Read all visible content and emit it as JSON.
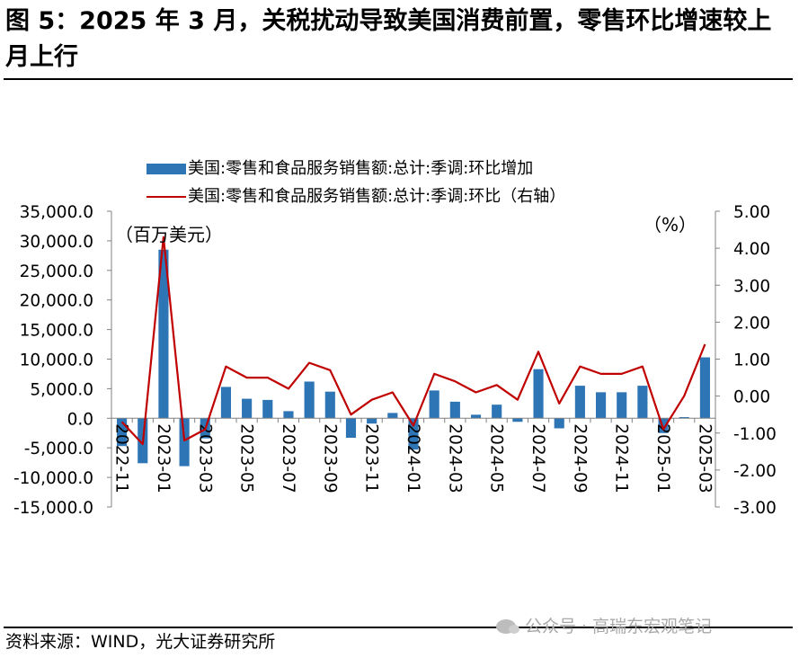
{
  "figure": {
    "title": "图 5：2025 年 3 月，关税扰动导致美国消费前置，零售环比增速较上月上行",
    "source": "资料来源：WIND，光大证券研究所",
    "watermark": "公众号 · 高瑞东宏观笔记"
  },
  "chart_data": {
    "type": "bar",
    "title": "",
    "categories": [
      "2022-11",
      "2022-12",
      "2023-01",
      "2023-02",
      "2023-03",
      "2023-04",
      "2023-05",
      "2023-06",
      "2023-07",
      "2023-08",
      "2023-09",
      "2023-10",
      "2023-11",
      "2023-12",
      "2024-01",
      "2024-02",
      "2024-03",
      "2024-04",
      "2024-05",
      "2024-06",
      "2024-07",
      "2024-08",
      "2024-09",
      "2024-10",
      "2024-11",
      "2024-12",
      "2025-01",
      "2025-02",
      "2025-03"
    ],
    "x_tick_labels": [
      "2022-11",
      "2023-01",
      "2023-03",
      "2023-05",
      "2023-07",
      "2023-09",
      "2023-11",
      "2024-01",
      "2024-03",
      "2024-05",
      "2024-07",
      "2024-09",
      "2024-11",
      "2025-01",
      "2025-03"
    ],
    "series": [
      {
        "name": "美国:零售和食品服务销售额:总计:季调:环比增加",
        "type": "bar",
        "axis": "left",
        "color": "#2e75b6",
        "values": [
          -4700,
          -7600,
          28500,
          -8100,
          -3400,
          5300,
          3300,
          3100,
          1200,
          6200,
          4500,
          -3300,
          -900,
          900,
          -5300,
          4700,
          2800,
          600,
          2300,
          -600,
          8300,
          -1700,
          5500,
          4400,
          4400,
          5500,
          -2500,
          200,
          10300
        ]
      },
      {
        "name": "美国:零售和食品服务销售额:总计:季调:环比（右轴）",
        "type": "line",
        "axis": "right",
        "color": "#c00000",
        "values": [
          -0.7,
          -1.3,
          4.3,
          -1.2,
          -0.9,
          0.8,
          0.5,
          0.5,
          0.2,
          0.9,
          0.7,
          -0.5,
          -0.1,
          0.1,
          -0.8,
          0.6,
          0.4,
          0.1,
          0.3,
          -0.1,
          1.2,
          -0.2,
          0.8,
          0.6,
          0.6,
          0.8,
          -0.9,
          0.0,
          1.4
        ]
      }
    ],
    "y_left": {
      "unit": "（百万美元）",
      "ylim": [
        -15000,
        35000
      ],
      "ticks": [
        35000,
        30000,
        25000,
        20000,
        15000,
        10000,
        5000,
        0,
        -5000,
        -10000,
        -15000
      ],
      "tick_labels": [
        "35,000.0",
        "30,000.0",
        "25,000.0",
        "20,000.0",
        "15,000.0",
        "10,000.0",
        "5,000.0",
        "0.0",
        "-5,000.0",
        "-10,000.0",
        "-15,000.0"
      ]
    },
    "y_right": {
      "unit": "（%）",
      "ylim": [
        -3,
        5
      ],
      "ticks": [
        5,
        4,
        3,
        2,
        1,
        0,
        -1,
        -2,
        -3
      ],
      "tick_labels": [
        "5.00",
        "4.00",
        "3.00",
        "2.00",
        "1.00",
        "0.00",
        "-1.00",
        "-2.00",
        "-3.00"
      ]
    },
    "grid": false,
    "legend_position": "top-center"
  }
}
